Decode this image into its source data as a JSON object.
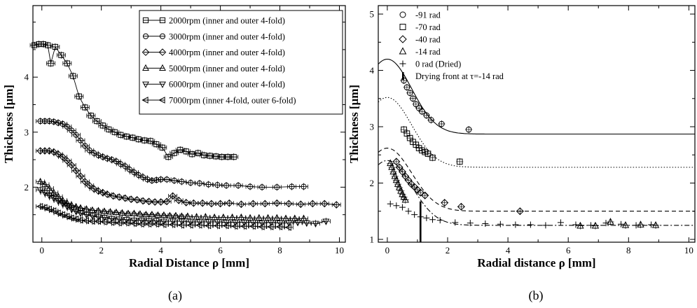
{
  "chart_data": [
    {
      "type": "line",
      "panel": "(a)",
      "xlabel": "Radial Distance ρ [mm]",
      "ylabel": "Thickness [μm]",
      "xlim": [
        -0.3,
        10.2
      ],
      "ylim": [
        1.0,
        5.3
      ],
      "xticks": [
        0,
        2,
        4,
        6,
        8,
        10
      ],
      "yticks": [
        2,
        3,
        4
      ],
      "legend_position": "top-right",
      "series": [
        {
          "name": "2000rpm (inner and outer 4-fold)",
          "marker": "square",
          "x": [
            -0.25,
            -0.1,
            0.05,
            0.2,
            0.3,
            0.45,
            0.65,
            0.85,
            1.05,
            1.25,
            1.45,
            1.65,
            1.85,
            2.05,
            2.25,
            2.45,
            2.65,
            2.85,
            3.05,
            3.25,
            3.45,
            3.65,
            3.85,
            4.05,
            4.25,
            4.45,
            4.65,
            4.85,
            5.05,
            5.25,
            5.45,
            5.65,
            5.85,
            6.05,
            6.25,
            6.45
          ],
          "y": [
            4.58,
            4.6,
            4.6,
            4.58,
            4.25,
            4.55,
            4.4,
            4.25,
            4.02,
            3.65,
            3.45,
            3.3,
            3.2,
            3.12,
            3.05,
            3.0,
            2.95,
            2.92,
            2.9,
            2.87,
            2.85,
            2.84,
            2.78,
            2.72,
            2.55,
            2.62,
            2.68,
            2.65,
            2.6,
            2.62,
            2.58,
            2.57,
            2.56,
            2.55,
            2.55,
            2.55
          ]
        },
        {
          "name": "3000rpm (inner and outer 4-fold)",
          "marker": "circle",
          "x": [
            -0.05,
            0.1,
            0.25,
            0.4,
            0.55,
            0.7,
            0.85,
            1.0,
            1.15,
            1.3,
            1.45,
            1.6,
            1.75,
            1.9,
            2.05,
            2.2,
            2.35,
            2.5,
            2.65,
            2.8,
            2.95,
            3.1,
            3.25,
            3.4,
            3.55,
            3.7,
            3.85,
            4.0,
            4.2,
            4.45,
            4.7,
            5.0,
            5.3,
            5.6,
            5.9,
            6.2,
            6.6,
            7.0,
            7.4,
            7.9,
            8.4,
            8.8
          ],
          "y": [
            3.2,
            3.2,
            3.2,
            3.19,
            3.17,
            3.15,
            3.1,
            3.03,
            2.95,
            2.85,
            2.75,
            2.67,
            2.62,
            2.58,
            2.55,
            2.52,
            2.5,
            2.47,
            2.42,
            2.38,
            2.32,
            2.27,
            2.22,
            2.18,
            2.14,
            2.12,
            2.13,
            2.14,
            2.14,
            2.12,
            2.1,
            2.08,
            2.07,
            2.05,
            2.04,
            2.03,
            2.03,
            2.01,
            2.0,
            2.0,
            2.01,
            2.01
          ]
        },
        {
          "name": "4000rpm (inner and outer 4-fold)",
          "marker": "diamond",
          "x": [
            -0.05,
            0.1,
            0.25,
            0.4,
            0.55,
            0.7,
            0.85,
            1.0,
            1.15,
            1.3,
            1.45,
            1.6,
            1.75,
            1.9,
            2.05,
            2.2,
            2.4,
            2.6,
            2.8,
            3.0,
            3.2,
            3.4,
            3.6,
            3.8,
            4.0,
            4.2,
            4.4,
            4.6,
            4.85,
            5.1,
            5.4,
            5.7,
            6.0,
            6.3,
            6.7,
            7.1,
            7.5,
            7.9,
            8.3,
            8.7,
            9.1,
            9.5,
            9.9
          ],
          "y": [
            2.66,
            2.66,
            2.66,
            2.64,
            2.6,
            2.55,
            2.48,
            2.4,
            2.3,
            2.2,
            2.1,
            2.03,
            1.97,
            1.93,
            1.9,
            1.87,
            1.84,
            1.82,
            1.8,
            1.78,
            1.77,
            1.75,
            1.74,
            1.73,
            1.73,
            1.74,
            1.84,
            1.76,
            1.72,
            1.71,
            1.71,
            1.7,
            1.7,
            1.71,
            1.69,
            1.7,
            1.7,
            1.71,
            1.7,
            1.69,
            1.7,
            1.7,
            1.68
          ]
        },
        {
          "name": "5000rpm (inner and outer 4-fold)",
          "marker": "triangle-up",
          "x": [
            -0.05,
            0.1,
            0.25,
            0.4,
            0.55,
            0.7,
            0.85,
            1.0,
            1.15,
            1.3,
            1.5,
            1.7,
            1.9,
            2.1,
            2.3,
            2.5,
            2.7,
            2.9,
            3.1,
            3.3,
            3.5,
            3.7,
            3.9,
            4.1,
            4.3,
            4.5,
            4.7,
            4.9,
            5.2,
            5.5,
            5.8,
            6.1,
            6.4,
            6.7,
            7.0,
            7.3,
            7.6,
            7.9,
            8.2,
            8.5,
            8.8
          ],
          "y": [
            2.1,
            2.05,
            1.98,
            1.9,
            1.83,
            1.76,
            1.71,
            1.67,
            1.64,
            1.62,
            1.6,
            1.58,
            1.57,
            1.56,
            1.55,
            1.54,
            1.53,
            1.52,
            1.52,
            1.51,
            1.5,
            1.5,
            1.49,
            1.49,
            1.48,
            1.48,
            1.47,
            1.47,
            1.46,
            1.46,
            1.45,
            1.45,
            1.45,
            1.45,
            1.44,
            1.44,
            1.44,
            1.44,
            1.43,
            1.43,
            1.43
          ]
        },
        {
          "name": "6000rpm (inner and outer 4-fold)",
          "marker": "triangle-down",
          "x": [
            -0.05,
            0.1,
            0.25,
            0.4,
            0.55,
            0.7,
            0.85,
            1.0,
            1.15,
            1.3,
            1.5,
            1.7,
            1.9,
            2.1,
            2.35,
            2.6,
            2.85,
            3.1,
            3.35,
            3.6,
            3.85,
            4.1,
            4.4,
            4.7,
            5.0,
            5.3,
            5.6,
            5.9,
            6.2,
            6.5,
            6.8,
            7.1,
            7.4,
            7.7,
            8.0,
            8.3,
            8.6,
            8.9,
            9.2,
            9.55
          ],
          "y": [
            1.95,
            1.9,
            1.85,
            1.8,
            1.75,
            1.7,
            1.65,
            1.6,
            1.56,
            1.53,
            1.5,
            1.48,
            1.46,
            1.45,
            1.43,
            1.42,
            1.41,
            1.4,
            1.4,
            1.39,
            1.39,
            1.38,
            1.38,
            1.38,
            1.37,
            1.37,
            1.37,
            1.37,
            1.36,
            1.36,
            1.36,
            1.36,
            1.35,
            1.36,
            1.35,
            1.35,
            1.36,
            1.35,
            1.34,
            1.38
          ]
        },
        {
          "name": "7000rpm (inner 4-fold, outer 6-fold)",
          "marker": "triangle-left",
          "x": [
            -0.05,
            0.1,
            0.25,
            0.4,
            0.55,
            0.7,
            0.85,
            1.0,
            1.15,
            1.3,
            1.5,
            1.7,
            1.9,
            2.1,
            2.35,
            2.6,
            2.85,
            3.1,
            3.35,
            3.6,
            3.85,
            4.1,
            4.4,
            4.7,
            5.0,
            5.3,
            5.6,
            5.9,
            6.2,
            6.5,
            6.8,
            7.1,
            7.4,
            7.7,
            8.0,
            8.3
          ],
          "y": [
            1.65,
            1.63,
            1.6,
            1.57,
            1.53,
            1.5,
            1.47,
            1.44,
            1.42,
            1.4,
            1.39,
            1.38,
            1.38,
            1.37,
            1.36,
            1.35,
            1.35,
            1.34,
            1.33,
            1.33,
            1.33,
            1.32,
            1.32,
            1.31,
            1.31,
            1.31,
            1.3,
            1.3,
            1.3,
            1.29,
            1.29,
            1.29,
            1.28,
            1.28,
            1.28,
            1.27
          ]
        }
      ]
    },
    {
      "type": "scatter",
      "panel": "(b)",
      "xlabel": "Radial distance ρ [mm]",
      "ylabel": "Thickness [μm]",
      "xlim": [
        -0.3,
        10.2
      ],
      "ylim": [
        0.95,
        5.15
      ],
      "xticks": [
        0,
        2,
        4,
        6,
        8,
        10
      ],
      "yticks": [
        1,
        2,
        3,
        4,
        5
      ],
      "legend_position": "top-left",
      "series": [
        {
          "name": "-91 rad",
          "marker": "circle",
          "line": "solid",
          "x": [
            0.55,
            0.65,
            0.75,
            0.85,
            0.95,
            1.05,
            1.15,
            1.3,
            1.45,
            1.8,
            2.7
          ],
          "y": [
            3.82,
            3.7,
            3.6,
            3.5,
            3.4,
            3.33,
            3.27,
            3.2,
            3.12,
            3.05,
            2.95
          ]
        },
        {
          "name": "-70 rad",
          "marker": "square",
          "line": "dotted",
          "x": [
            0.55,
            0.65,
            0.75,
            0.85,
            0.95,
            1.05,
            1.15,
            1.25,
            1.35,
            1.5,
            2.4
          ],
          "y": [
            2.95,
            2.88,
            2.8,
            2.73,
            2.68,
            2.62,
            2.58,
            2.55,
            2.52,
            2.45,
            2.38
          ]
        },
        {
          "name": "-40 rad",
          "marker": "diamond",
          "line": "dashed",
          "x": [
            0.3,
            0.4,
            0.5,
            0.6,
            0.7,
            0.8,
            0.9,
            1.0,
            1.1,
            1.25,
            1.9,
            2.45,
            4.4
          ],
          "y": [
            2.38,
            2.28,
            2.2,
            2.12,
            2.05,
            1.98,
            1.93,
            1.88,
            1.83,
            1.78,
            1.65,
            1.58,
            1.5
          ]
        },
        {
          "name": "-14 rad",
          "marker": "triangle-up",
          "line": "dash-dot",
          "x": [
            0.1,
            0.15,
            0.2,
            0.25,
            0.3,
            0.35,
            0.4,
            0.45,
            0.5,
            0.55,
            0.6,
            6.4,
            6.9,
            7.4,
            7.9,
            8.4,
            8.9
          ],
          "y": [
            2.35,
            2.28,
            2.2,
            2.12,
            2.05,
            1.98,
            1.92,
            1.86,
            1.8,
            1.75,
            1.7,
            1.24,
            1.24,
            1.31,
            1.25,
            1.26,
            1.25
          ]
        },
        {
          "name": "0 rad (Dried)",
          "marker": "plus",
          "line": "none",
          "x": [
            0.1,
            0.3,
            0.5,
            0.7,
            0.9,
            1.1,
            1.3,
            1.5,
            1.75,
            2.25,
            2.75,
            3.25,
            3.75,
            4.25,
            4.75,
            5.25,
            5.75,
            6.25,
            6.75,
            7.25,
            7.75,
            8.25,
            8.75
          ],
          "y": [
            1.63,
            1.6,
            1.57,
            1.5,
            1.44,
            1.4,
            1.38,
            1.35,
            1.34,
            1.3,
            1.29,
            1.28,
            1.27,
            1.26,
            1.26,
            1.25,
            1.3,
            1.26,
            1.25,
            1.29,
            1.27,
            1.25,
            1.26
          ]
        },
        {
          "name": "Drying front at τ=-14 rad",
          "marker": "bar",
          "x": [
            1.1
          ],
          "y": [
            1.6
          ]
        }
      ],
      "fit_curves": [
        {
          "series": "-91 rad",
          "peak": 4.2,
          "tail": 2.87
        },
        {
          "series": "-70 rad",
          "peak": 3.52,
          "tail": 2.28
        },
        {
          "series": "-40 rad",
          "peak": 2.62,
          "tail": 1.5
        },
        {
          "series": "-14 rad",
          "peak": 2.4,
          "tail": 1.25
        }
      ]
    }
  ],
  "captions": {
    "a": "(a)",
    "b": "(b)"
  }
}
